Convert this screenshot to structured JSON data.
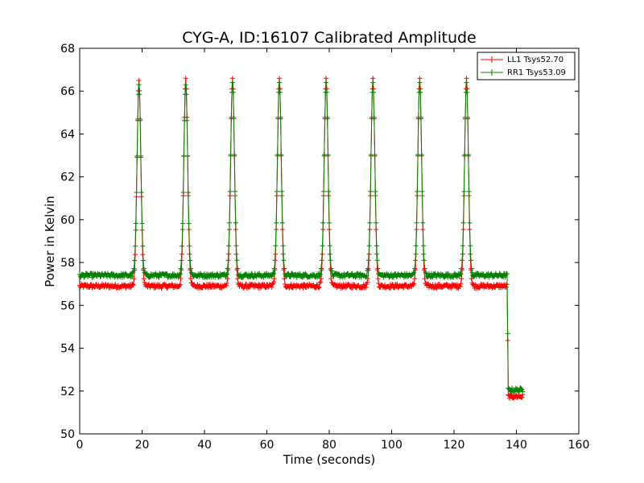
{
  "chart_data": {
    "type": "line",
    "title": "CYG-A, ID:16107 Calibrated Amplitude",
    "xlabel": "Time (seconds)",
    "ylabel": "Power in Kelvin",
    "xlim": [
      0,
      160
    ],
    "ylim": [
      50,
      68
    ],
    "xticks": [
      0,
      20,
      40,
      60,
      80,
      100,
      120,
      140,
      160
    ],
    "yticks": [
      50,
      52,
      54,
      56,
      58,
      60,
      62,
      64,
      66,
      68
    ],
    "grid": false,
    "legend_position": "top-right",
    "marker": "+",
    "series": [
      {
        "name": "LL1 Tsys52.70",
        "color": "#ff0000",
        "baseline": 56.9,
        "peak_times": [
          19,
          34,
          49,
          64,
          79,
          94,
          109,
          124
        ],
        "peak_values": [
          66.5,
          66.6,
          66.6,
          66.6,
          66.6,
          66.6,
          66.6,
          66.6
        ],
        "drop_time": 137,
        "end_time": 142,
        "end_level": 51.75,
        "points": [
          [
            0,
            56.9
          ],
          [
            17,
            57.2
          ],
          [
            18,
            62.8
          ],
          [
            19,
            66.5
          ],
          [
            20,
            63.5
          ],
          [
            21,
            57.8
          ],
          [
            32,
            57.0
          ],
          [
            33,
            62.3
          ],
          [
            34,
            66.6
          ],
          [
            35,
            64.0
          ],
          [
            36,
            57.8
          ],
          [
            48,
            63.3
          ],
          [
            49,
            66.6
          ],
          [
            50,
            61.0
          ],
          [
            63,
            64.8
          ],
          [
            64,
            66.6
          ],
          [
            65,
            61.6
          ],
          [
            78,
            64.5
          ],
          [
            79,
            66.6
          ],
          [
            80,
            62.4
          ],
          [
            93,
            62.0
          ],
          [
            94,
            66.6
          ],
          [
            95,
            63.0
          ],
          [
            108,
            61.5
          ],
          [
            109,
            66.6
          ],
          [
            110,
            64.0
          ],
          [
            123,
            64.8
          ],
          [
            124,
            66.6
          ],
          [
            125,
            58.5
          ],
          [
            137,
            56.9
          ],
          [
            137.2,
            55.1
          ],
          [
            137.4,
            51.75
          ],
          [
            142,
            51.75
          ]
        ]
      },
      {
        "name": "RR1 Tsys53.09",
        "color": "#008000",
        "baseline": 57.4,
        "peak_times": [
          19,
          34,
          49,
          64,
          79,
          94,
          109,
          124
        ],
        "peak_values": [
          66.3,
          66.3,
          66.4,
          66.4,
          66.4,
          66.4,
          66.4,
          66.4
        ],
        "drop_time": 137,
        "end_time": 142,
        "end_level": 52.05,
        "points": [
          [
            0,
            57.4
          ],
          [
            17,
            59.2
          ],
          [
            18,
            64.8
          ],
          [
            19,
            66.3
          ],
          [
            20,
            62.0
          ],
          [
            21,
            58.0
          ],
          [
            33,
            62.2
          ],
          [
            34,
            66.3
          ],
          [
            35,
            61.4
          ],
          [
            48,
            63.2
          ],
          [
            49,
            66.4
          ],
          [
            50,
            60.9
          ],
          [
            63,
            62.6
          ],
          [
            64,
            66.4
          ],
          [
            65,
            61.3
          ],
          [
            78,
            62.3
          ],
          [
            79,
            66.4
          ],
          [
            80,
            60.2
          ],
          [
            93,
            61.9
          ],
          [
            94,
            66.4
          ],
          [
            95,
            59.9
          ],
          [
            108,
            60.4
          ],
          [
            109,
            66.4
          ],
          [
            110,
            61.8
          ],
          [
            123,
            64.9
          ],
          [
            124,
            66.4
          ],
          [
            125,
            59.0
          ],
          [
            137,
            57.4
          ],
          [
            137.2,
            55.6
          ],
          [
            137.4,
            52.05
          ],
          [
            142,
            52.05
          ]
        ]
      }
    ]
  }
}
